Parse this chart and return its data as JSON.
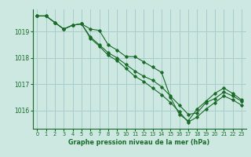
{
  "title": "Graphe pression niveau de la mer (hPa)",
  "background_color": "#cce8e0",
  "grid_color": "#aacccc",
  "line_color": "#1a6b2a",
  "xlim": [
    -0.5,
    23.5
  ],
  "ylim": [
    1015.3,
    1019.85
  ],
  "yticks": [
    1016,
    1017,
    1018,
    1019
  ],
  "xticks": [
    0,
    1,
    2,
    3,
    4,
    5,
    6,
    7,
    8,
    9,
    10,
    11,
    12,
    13,
    14,
    15,
    16,
    17,
    18,
    19,
    20,
    21,
    22,
    23
  ],
  "series1": [
    1019.6,
    1019.6,
    1019.35,
    1019.1,
    1019.25,
    1019.3,
    1019.1,
    1019.05,
    1018.5,
    1018.3,
    1018.05,
    1018.05,
    1017.85,
    1017.65,
    1017.45,
    1016.5,
    1015.85,
    1015.6,
    1016.05,
    1016.35,
    1016.65,
    1016.85,
    1016.65,
    1016.4
  ],
  "series2": [
    1019.6,
    1019.6,
    1019.35,
    1019.1,
    1019.25,
    1019.3,
    1018.8,
    1018.5,
    1018.2,
    1018.0,
    1017.75,
    1017.5,
    1017.3,
    1017.15,
    1016.9,
    1016.55,
    1016.2,
    1015.85,
    1015.9,
    1016.3,
    1016.45,
    1016.7,
    1016.55,
    1016.35
  ],
  "series3": [
    1019.6,
    1019.6,
    1019.35,
    1019.1,
    1019.25,
    1019.3,
    1018.75,
    1018.45,
    1018.1,
    1017.9,
    1017.6,
    1017.3,
    1017.1,
    1016.85,
    1016.6,
    1016.3,
    1015.95,
    1015.55,
    1015.75,
    1016.05,
    1016.3,
    1016.55,
    1016.4,
    1016.2
  ]
}
